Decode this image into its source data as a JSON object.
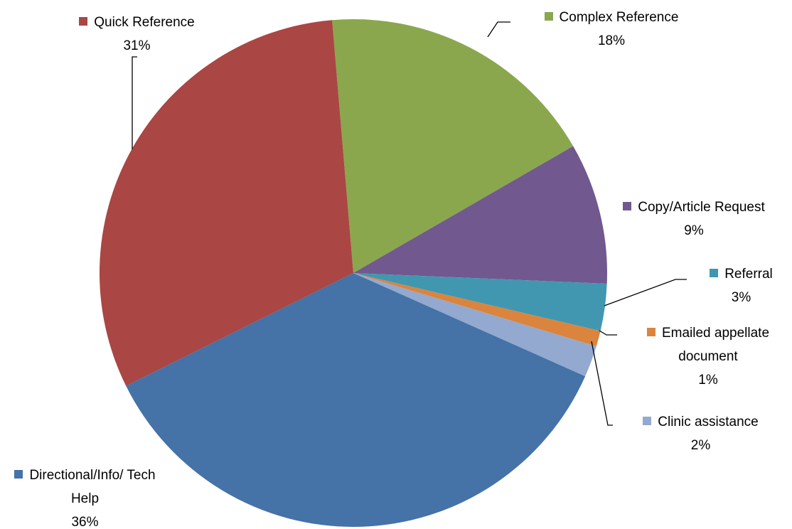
{
  "chart_data": {
    "type": "pie",
    "categories": [
      "Complex Reference",
      "Copy/Article Request",
      "Referral",
      "Emailed appellate document",
      "Clinic assistance",
      "Directional/Info/ Tech Help",
      "Quick Reference"
    ],
    "values": [
      18,
      9,
      3,
      1,
      2,
      36,
      31
    ],
    "value_labels": [
      "18%",
      "9%",
      "3%",
      "1%",
      "2%",
      "36%",
      "31%"
    ],
    "colors": [
      "#8aa74e",
      "#71588f",
      "#4197b0",
      "#db843d",
      "#93a9cf",
      "#4572a7",
      "#aa4643"
    ]
  }
}
